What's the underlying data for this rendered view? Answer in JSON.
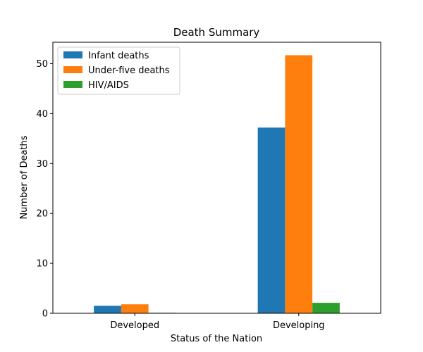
{
  "chart_data": {
    "type": "bar",
    "title": "Death Summary",
    "xlabel": "Status of the Nation",
    "ylabel": "Number of Deaths",
    "categories": [
      "Developed",
      "Developing"
    ],
    "series": [
      {
        "name": "Infant deaths",
        "values": [
          1.5,
          37.2
        ],
        "color": "#1f77b4"
      },
      {
        "name": "Under-five deaths",
        "values": [
          1.8,
          51.7
        ],
        "color": "#ff7f0e"
      },
      {
        "name": "HIV/AIDS",
        "values": [
          0.1,
          2.1
        ],
        "color": "#2ca02c"
      }
    ],
    "ylim": [
      0,
      54.3
    ],
    "yticks": [
      0,
      10,
      20,
      30,
      40,
      50
    ],
    "ytick_labels": [
      "0",
      "10",
      "20",
      "30",
      "40",
      "50"
    ],
    "legend_position": "upper-left",
    "grid": false
  }
}
